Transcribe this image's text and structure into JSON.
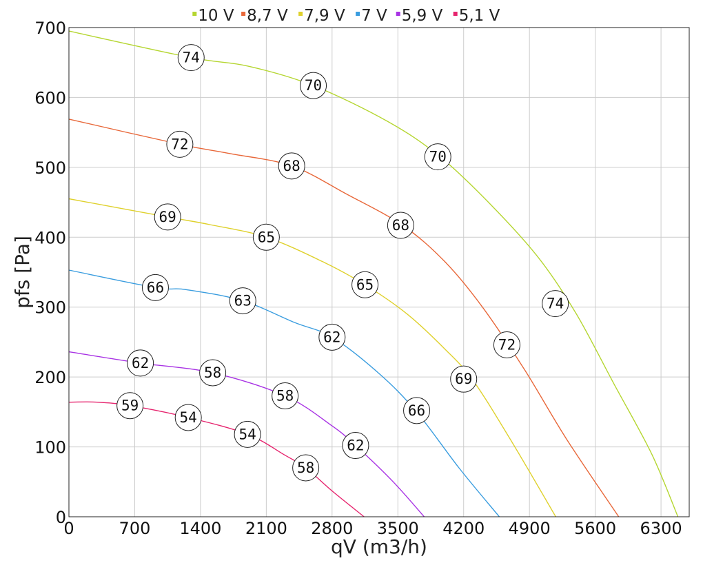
{
  "chart_data": {
    "type": "line",
    "xlabel": "qV (m3/h)",
    "ylabel": "pfs [Pa]",
    "xlim": [
      0,
      6600
    ],
    "ylim": [
      0,
      700
    ],
    "xticks": [
      0,
      700,
      1400,
      2100,
      2800,
      3500,
      4200,
      4900,
      5600,
      6300
    ],
    "yticks": [
      0,
      100,
      200,
      300,
      400,
      500,
      600,
      700
    ],
    "grid": true,
    "legend_position": "top",
    "series": [
      {
        "name": "10 V",
        "color": "#b5d631",
        "points": [
          [
            0,
            695
          ],
          [
            1300,
            657
          ],
          [
            1900,
            645
          ],
          [
            2600,
            617
          ],
          [
            3400,
            565
          ],
          [
            3950,
            515
          ],
          [
            4500,
            445
          ],
          [
            5000,
            370
          ],
          [
            5400,
            290
          ],
          [
            5800,
            190
          ],
          [
            6200,
            90
          ],
          [
            6480,
            0
          ]
        ],
        "labels": [
          {
            "x": 1300,
            "y": 657,
            "text": "74"
          },
          {
            "x": 2600,
            "y": 617,
            "text": "70"
          },
          {
            "x": 3925,
            "y": 515,
            "text": "70"
          },
          {
            "x": 5175,
            "y": 305,
            "text": "74"
          }
        ]
      },
      {
        "name": "8,7 V",
        "color": "#e8683a",
        "points": [
          [
            0,
            569
          ],
          [
            1180,
            533
          ],
          [
            1700,
            520
          ],
          [
            2370,
            502
          ],
          [
            2950,
            462
          ],
          [
            3550,
            417
          ],
          [
            4000,
            365
          ],
          [
            4400,
            300
          ],
          [
            4850,
            210
          ],
          [
            5300,
            110
          ],
          [
            5850,
            0
          ]
        ],
        "labels": [
          {
            "x": 1180,
            "y": 533,
            "text": "72"
          },
          {
            "x": 2370,
            "y": 502,
            "text": "68"
          },
          {
            "x": 3530,
            "y": 417,
            "text": "68"
          },
          {
            "x": 4660,
            "y": 246,
            "text": "72"
          }
        ]
      },
      {
        "name": "7,9 V",
        "color": "#dfd12d",
        "points": [
          [
            0,
            455
          ],
          [
            1050,
            429
          ],
          [
            1500,
            418
          ],
          [
            2100,
            400
          ],
          [
            2700,
            365
          ],
          [
            3150,
            332
          ],
          [
            3600,
            290
          ],
          [
            4000,
            240
          ],
          [
            4300,
            195
          ],
          [
            4700,
            110
          ],
          [
            5180,
            0
          ]
        ],
        "labels": [
          {
            "x": 1050,
            "y": 429,
            "text": "69"
          },
          {
            "x": 2100,
            "y": 400,
            "text": "65"
          },
          {
            "x": 3150,
            "y": 332,
            "text": "65"
          },
          {
            "x": 4200,
            "y": 197,
            "text": "69"
          }
        ]
      },
      {
        "name": "7 V",
        "color": "#3a9ddf",
        "points": [
          [
            0,
            353
          ],
          [
            920,
            328
          ],
          [
            1250,
            325
          ],
          [
            1850,
            309
          ],
          [
            2400,
            278
          ],
          [
            2800,
            257
          ],
          [
            3300,
            205
          ],
          [
            3700,
            150
          ],
          [
            4150,
            70
          ],
          [
            4580,
            0
          ]
        ],
        "labels": [
          {
            "x": 920,
            "y": 328,
            "text": "66"
          },
          {
            "x": 1850,
            "y": 309,
            "text": "63"
          },
          {
            "x": 2800,
            "y": 257,
            "text": "62"
          },
          {
            "x": 3700,
            "y": 152,
            "text": "66"
          }
        ]
      },
      {
        "name": "5,9 V",
        "color": "#a832e4",
        "points": [
          [
            0,
            236
          ],
          [
            760,
            220
          ],
          [
            1530,
            206
          ],
          [
            2300,
            173
          ],
          [
            2800,
            130
          ],
          [
            3050,
            102
          ],
          [
            3450,
            50
          ],
          [
            3780,
            0
          ]
        ],
        "labels": [
          {
            "x": 760,
            "y": 220,
            "text": "62"
          },
          {
            "x": 1530,
            "y": 206,
            "text": "58"
          },
          {
            "x": 2300,
            "y": 173,
            "text": "58"
          },
          {
            "x": 3050,
            "y": 102,
            "text": "62"
          }
        ]
      },
      {
        "name": "5,1 V",
        "color": "#e6246e",
        "points": [
          [
            0,
            164
          ],
          [
            300,
            164
          ],
          [
            650,
            159
          ],
          [
            1270,
            142
          ],
          [
            1900,
            118
          ],
          [
            2300,
            88
          ],
          [
            2520,
            70
          ],
          [
            2800,
            37
          ],
          [
            3140,
            0
          ]
        ],
        "labels": [
          {
            "x": 650,
            "y": 159,
            "text": "59"
          },
          {
            "x": 1270,
            "y": 142,
            "text": "54"
          },
          {
            "x": 1900,
            "y": 118,
            "text": "54"
          },
          {
            "x": 2520,
            "y": 70,
            "text": "58"
          }
        ]
      }
    ]
  }
}
